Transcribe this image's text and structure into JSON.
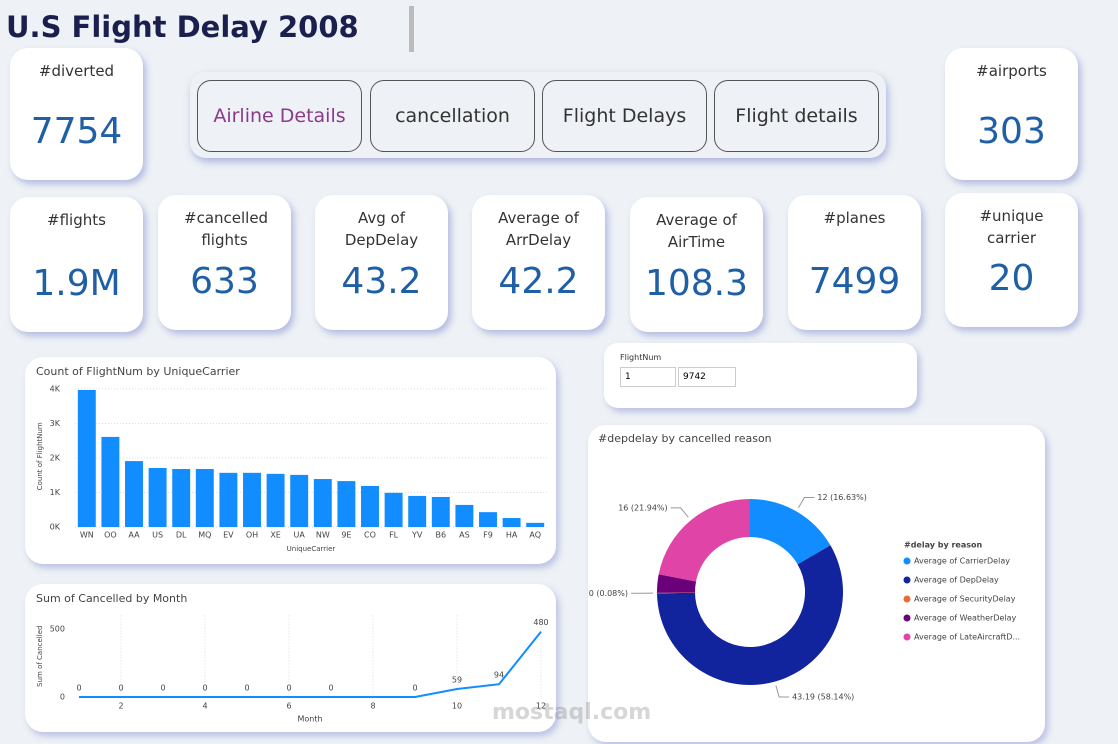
{
  "header": {
    "title": "U.S Flight Delay 2008"
  },
  "cards": [
    {
      "label": "#diverted",
      "value": "7754"
    },
    {
      "label": "#airports",
      "value": "303"
    },
    {
      "label": "#flights",
      "value": "1.9M"
    },
    {
      "label": "#cancelled flights",
      "value": "633"
    },
    {
      "label": "Avg of DepDelay",
      "value": "43.2"
    },
    {
      "label": "Average of ArrDelay",
      "value": "42.2"
    },
    {
      "label": "Average of AirTime",
      "value": "108.3"
    },
    {
      "label": "#planes",
      "value": "7499"
    },
    {
      "label": "#unique carrier",
      "value": "20"
    }
  ],
  "buttons": [
    "Airline Details",
    "cancellation",
    "Flight Delays",
    "Flight details"
  ],
  "slicer": {
    "label": "FlightNum",
    "from": "1",
    "to": "9742"
  },
  "watermark": "mostaql.com",
  "chart_data": [
    {
      "type": "bar",
      "title": "Count of FlightNum by UniqueCarrier",
      "x_label": "UniqueCarrier",
      "y_label": "Count of FlightNum",
      "categories": [
        "WN",
        "OO",
        "AA",
        "US",
        "DL",
        "MQ",
        "EV",
        "OH",
        "XE",
        "UA",
        "NW",
        "9E",
        "CO",
        "FL",
        "YV",
        "B6",
        "AS",
        "F9",
        "HA",
        "AQ"
      ],
      "values": [
        3970,
        2610,
        1910,
        1710,
        1680,
        1680,
        1570,
        1570,
        1540,
        1510,
        1390,
        1330,
        1190,
        990,
        900,
        870,
        640,
        430,
        260,
        120
      ],
      "color": "#118dff",
      "ylim": [
        0,
        4100
      ],
      "yticks": [
        {
          "value": 0,
          "label": "0K"
        },
        {
          "value": 1000,
          "label": "1K"
        },
        {
          "value": 2000,
          "label": "2K"
        },
        {
          "value": 3000,
          "label": "3K"
        },
        {
          "value": 4000,
          "label": "4K"
        }
      ],
      "grid": true
    },
    {
      "type": "line",
      "title": "Sum of Cancelled by Month",
      "x_label": "Month",
      "y_label": "Sum of Cancelled",
      "x": [
        1,
        2,
        3,
        4,
        5,
        6,
        7,
        9,
        10,
        11,
        12
      ],
      "values": [
        0,
        0,
        0,
        0,
        0,
        0,
        0,
        0,
        59,
        94,
        480
      ],
      "color": "#118dff",
      "xlim": [
        1,
        12
      ],
      "xticks": [
        2,
        4,
        6,
        8,
        10,
        12
      ],
      "ylim": [
        0,
        600
      ],
      "yticks": [
        0,
        500
      ],
      "grid": true
    },
    {
      "type": "pie",
      "title": "#depdelay by cancelled reason",
      "legend_title": "#delay by reason",
      "categories": [
        "Average of CarrierDelay",
        "Average of DepDelay",
        "Average of SecurityDelay",
        "Average of WeatherDelay",
        "Average of LateAircraftD..."
      ],
      "values": [
        12.35,
        43.19,
        0.06,
        2.38,
        16.3
      ],
      "value_labels": [
        "12 (16.63%)",
        "43.19 (58.14%)",
        "0 (0.08%)",
        null,
        "16 (21.94%)"
      ],
      "colors": [
        "#118dff",
        "#12239e",
        "#e66c37",
        "#6b007b",
        "#e044a7"
      ],
      "legend": "right"
    }
  ]
}
